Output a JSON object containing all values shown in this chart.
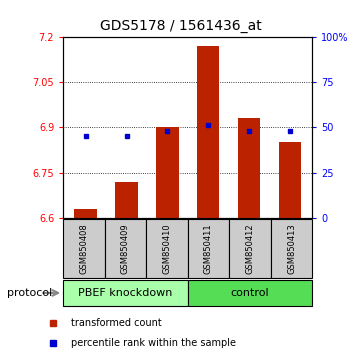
{
  "title": "GDS5178 / 1561436_at",
  "samples": [
    "GSM850408",
    "GSM850409",
    "GSM850410",
    "GSM850411",
    "GSM850412",
    "GSM850413"
  ],
  "bar_values": [
    6.63,
    6.72,
    6.9,
    7.17,
    6.93,
    6.85
  ],
  "bar_base": 6.6,
  "percentile_values": [
    6.872,
    6.872,
    6.888,
    6.908,
    6.888,
    6.888
  ],
  "bar_color": "#bb2200",
  "blue_color": "#0000cc",
  "ylim": [
    6.6,
    7.2
  ],
  "yticks": [
    6.6,
    6.75,
    6.9,
    7.05,
    7.2
  ],
  "ytick_labels": [
    "6.6",
    "6.75",
    "6.9",
    "7.05",
    "7.2"
  ],
  "y2lim": [
    0,
    100
  ],
  "y2ticks": [
    0,
    25,
    50,
    75,
    100
  ],
  "y2tick_labels": [
    "0",
    "25",
    "50",
    "75",
    "100%"
  ],
  "groups": [
    {
      "label": "PBEF knockdown",
      "indices": [
        0,
        1,
        2
      ],
      "color": "#aaffaa"
    },
    {
      "label": "control",
      "indices": [
        3,
        4,
        5
      ],
      "color": "#55dd55"
    }
  ],
  "protocol_label": "protocol",
  "legend_bar_label": "transformed count",
  "legend_dot_label": "percentile rank within the sample",
  "group_bg_color": "#cccccc",
  "title_fontsize": 10,
  "tick_fontsize": 7,
  "sample_fontsize": 6,
  "group_fontsize": 8,
  "legend_fontsize": 7
}
